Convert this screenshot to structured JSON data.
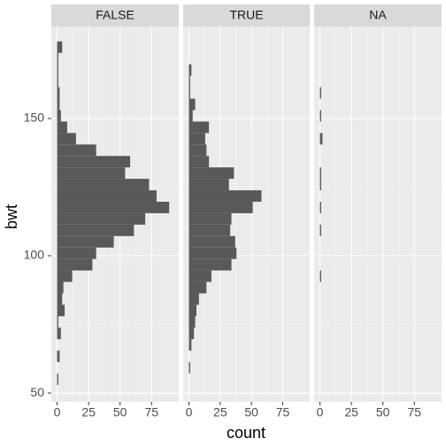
{
  "chart_data": {
    "type": "histogram",
    "orientation": "horizontal",
    "x_label": "count",
    "y_label": "bwt",
    "bins": [
      52.91,
      57.09,
      61.26,
      65.43,
      69.6,
      73.78,
      77.95,
      82.12,
      86.29,
      90.47,
      94.64,
      98.81,
      102.98,
      107.16,
      111.33,
      115.5,
      119.67,
      123.84,
      128.02,
      132.19,
      136.36,
      140.53,
      144.71,
      148.88,
      153.05,
      157.22,
      161.4,
      165.57,
      169.74,
      173.91,
      178.09
    ],
    "series": [
      {
        "name": "FALSE",
        "color": "#595959",
        "values": [
          1,
          0,
          2,
          0,
          3,
          1,
          6,
          4,
          5,
          12,
          28,
          31,
          45,
          61,
          70,
          89,
          79,
          73,
          54,
          58,
          31,
          15,
          8,
          3,
          2,
          2,
          1,
          1,
          1,
          4
        ]
      },
      {
        "name": "TRUE",
        "color": "#595959",
        "values": [
          0,
          1,
          0,
          2,
          4,
          5,
          6,
          8,
          14,
          18,
          34,
          38,
          37,
          33,
          34,
          51,
          58,
          32,
          36,
          16,
          14,
          13,
          16,
          3,
          5,
          1,
          1,
          2,
          0,
          0
        ]
      },
      {
        "name": "NA",
        "color": "#595959",
        "values": [
          0,
          0,
          0,
          0,
          0,
          0,
          0,
          0,
          0,
          1,
          0,
          0,
          0,
          1,
          0,
          1,
          0,
          1,
          1,
          0,
          0,
          2,
          0,
          1,
          0,
          1,
          0,
          0,
          0,
          0
        ]
      }
    ],
    "xlim": [
      -4.6,
      96.6
    ],
    "xticks": [
      0,
      25,
      50,
      75
    ],
    "ylim": [
      46.8,
      183.5
    ],
    "yticks": [
      50,
      100,
      150
    ],
    "grid": true
  }
}
